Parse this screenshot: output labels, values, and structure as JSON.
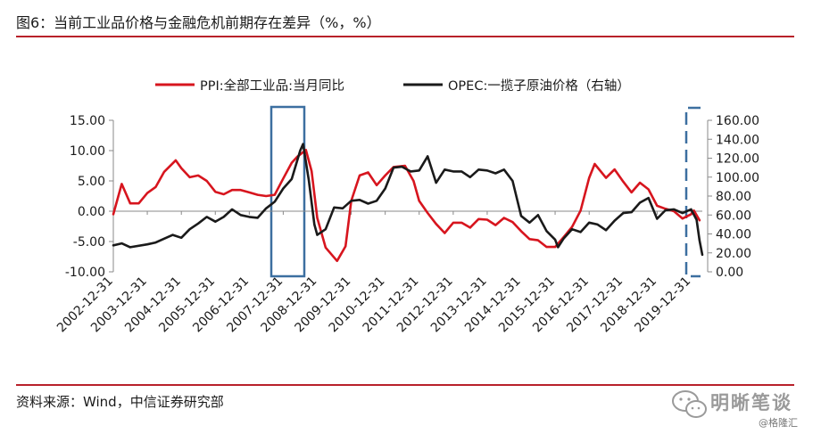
{
  "figure": {
    "title": "图6：当前工业品价格与金融危机前期存在差异（%，%）",
    "source": "资料来源：Wind，中信证券研究部",
    "watermark": "明晰笔谈",
    "watermark_sub": "@格隆汇"
  },
  "colors": {
    "ppi": "#d7151e",
    "opec": "#1a1a1a",
    "rule": "#b8212a",
    "highlight": "#3c6fa0"
  },
  "chart_data": {
    "type": "line",
    "title": "",
    "legend_position": "top",
    "grid": false,
    "x_tick_labels": [
      "2002-12-31",
      "2003-12-31",
      "2004-12-31",
      "2005-12-31",
      "2006-12-31",
      "2007-12-31",
      "2008-12-31",
      "2009-12-31",
      "2010-12-31",
      "2011-12-31",
      "2012-12-31",
      "2013-12-31",
      "2014-12-31",
      "2015-12-31",
      "2016-12-31",
      "2017-12-31",
      "2018-12-31",
      "2019-12-31"
    ],
    "x_range": [
      "2002-12-31",
      "2020-04-30"
    ],
    "y_left": {
      "range": [
        -10,
        15
      ],
      "ticks": [
        "-10.00",
        "-5.00",
        "0.00",
        "5.00",
        "10.00",
        "15.00"
      ]
    },
    "y_right": {
      "range": [
        0,
        160
      ],
      "ticks": [
        "0.00",
        "20.00",
        "40.00",
        "60.00",
        "80.00",
        "100.00",
        "120.00",
        "140.00",
        "160.00"
      ]
    },
    "series": [
      {
        "name": "PPI:全部工业品:当月同比",
        "axis": "left",
        "points": [
          [
            "2002-12-31",
            -0.5
          ],
          [
            "2003-03-31",
            4.5
          ],
          [
            "2003-06-30",
            1.3
          ],
          [
            "2003-09-30",
            1.3
          ],
          [
            "2003-12-31",
            3.0
          ],
          [
            "2004-03-31",
            4.0
          ],
          [
            "2004-06-30",
            6.5
          ],
          [
            "2004-10-31",
            8.4
          ],
          [
            "2004-12-31",
            7.1
          ],
          [
            "2005-03-31",
            5.6
          ],
          [
            "2005-06-30",
            5.9
          ],
          [
            "2005-09-30",
            5.0
          ],
          [
            "2005-12-31",
            3.2
          ],
          [
            "2006-03-31",
            2.8
          ],
          [
            "2006-06-30",
            3.5
          ],
          [
            "2006-09-30",
            3.5
          ],
          [
            "2006-12-31",
            3.1
          ],
          [
            "2007-03-31",
            2.7
          ],
          [
            "2007-06-30",
            2.5
          ],
          [
            "2007-09-30",
            2.7
          ],
          [
            "2007-12-31",
            5.4
          ],
          [
            "2008-03-31",
            8.0
          ],
          [
            "2008-05-31",
            9.0
          ],
          [
            "2008-08-31",
            10.1
          ],
          [
            "2008-10-31",
            6.6
          ],
          [
            "2008-12-31",
            -1.1
          ],
          [
            "2009-03-31",
            -6.0
          ],
          [
            "2009-07-31",
            -8.2
          ],
          [
            "2009-10-31",
            -5.8
          ],
          [
            "2009-12-31",
            1.7
          ],
          [
            "2010-03-31",
            5.9
          ],
          [
            "2010-06-30",
            6.4
          ],
          [
            "2010-09-30",
            4.3
          ],
          [
            "2010-12-31",
            5.9
          ],
          [
            "2011-03-31",
            7.3
          ],
          [
            "2011-07-31",
            7.5
          ],
          [
            "2011-10-31",
            5.0
          ],
          [
            "2011-12-31",
            1.7
          ],
          [
            "2012-03-31",
            -0.3
          ],
          [
            "2012-06-30",
            -2.1
          ],
          [
            "2012-09-30",
            -3.6
          ],
          [
            "2012-12-31",
            -1.9
          ],
          [
            "2013-03-31",
            -1.9
          ],
          [
            "2013-06-30",
            -2.7
          ],
          [
            "2013-09-30",
            -1.3
          ],
          [
            "2013-12-31",
            -1.4
          ],
          [
            "2014-03-31",
            -2.3
          ],
          [
            "2014-06-30",
            -1.1
          ],
          [
            "2014-09-30",
            -1.8
          ],
          [
            "2014-12-31",
            -3.3
          ],
          [
            "2015-03-31",
            -4.6
          ],
          [
            "2015-06-30",
            -4.8
          ],
          [
            "2015-09-30",
            -5.9
          ],
          [
            "2015-12-31",
            -5.9
          ],
          [
            "2016-03-31",
            -4.3
          ],
          [
            "2016-06-30",
            -2.6
          ],
          [
            "2016-09-30",
            0.1
          ],
          [
            "2016-12-31",
            5.5
          ],
          [
            "2017-02-28",
            7.8
          ],
          [
            "2017-06-30",
            5.5
          ],
          [
            "2017-09-30",
            6.9
          ],
          [
            "2017-12-31",
            4.9
          ],
          [
            "2018-03-31",
            3.1
          ],
          [
            "2018-06-30",
            4.7
          ],
          [
            "2018-09-30",
            3.6
          ],
          [
            "2018-12-31",
            0.9
          ],
          [
            "2019-03-31",
            0.4
          ],
          [
            "2019-06-30",
            0.0
          ],
          [
            "2019-09-30",
            -1.2
          ],
          [
            "2019-12-31",
            -0.5
          ],
          [
            "2020-01-31",
            0.1
          ],
          [
            "2020-03-31",
            -1.5
          ]
        ]
      },
      {
        "name": "OPEC:一揽子原油价格（右轴）",
        "axis": "right",
        "points": [
          [
            "2002-12-31",
            28
          ],
          [
            "2003-03-31",
            30
          ],
          [
            "2003-06-30",
            26
          ],
          [
            "2003-12-31",
            29
          ],
          [
            "2004-03-31",
            31
          ],
          [
            "2004-06-30",
            35
          ],
          [
            "2004-09-30",
            39
          ],
          [
            "2004-12-31",
            36
          ],
          [
            "2005-03-31",
            45
          ],
          [
            "2005-06-30",
            51
          ],
          [
            "2005-09-30",
            58
          ],
          [
            "2005-12-31",
            53
          ],
          [
            "2006-03-31",
            58
          ],
          [
            "2006-06-30",
            66
          ],
          [
            "2006-09-30",
            60
          ],
          [
            "2006-12-31",
            58
          ],
          [
            "2007-03-31",
            57
          ],
          [
            "2007-06-30",
            67
          ],
          [
            "2007-09-30",
            74
          ],
          [
            "2007-12-31",
            88
          ],
          [
            "2008-03-31",
            98
          ],
          [
            "2008-06-30",
            128
          ],
          [
            "2008-07-31",
            135
          ],
          [
            "2008-09-30",
            97
          ],
          [
            "2008-11-30",
            50
          ],
          [
            "2008-12-31",
            39
          ],
          [
            "2009-03-31",
            45
          ],
          [
            "2009-06-30",
            68
          ],
          [
            "2009-09-30",
            67
          ],
          [
            "2009-12-31",
            75
          ],
          [
            "2010-03-31",
            76
          ],
          [
            "2010-06-30",
            72
          ],
          [
            "2010-09-30",
            75
          ],
          [
            "2010-12-31",
            88
          ],
          [
            "2011-03-31",
            110
          ],
          [
            "2011-06-30",
            111
          ],
          [
            "2011-09-30",
            106
          ],
          [
            "2011-12-31",
            107
          ],
          [
            "2012-03-31",
            122
          ],
          [
            "2012-06-30",
            94
          ],
          [
            "2012-09-30",
            108
          ],
          [
            "2012-12-31",
            106
          ],
          [
            "2013-03-31",
            106
          ],
          [
            "2013-06-30",
            100
          ],
          [
            "2013-09-30",
            108
          ],
          [
            "2013-12-31",
            107
          ],
          [
            "2014-03-31",
            104
          ],
          [
            "2014-06-30",
            108
          ],
          [
            "2014-09-30",
            96
          ],
          [
            "2014-12-31",
            59
          ],
          [
            "2015-03-31",
            52
          ],
          [
            "2015-06-30",
            60
          ],
          [
            "2015-09-30",
            43
          ],
          [
            "2015-12-31",
            34
          ],
          [
            "2016-01-31",
            26
          ],
          [
            "2016-03-31",
            35
          ],
          [
            "2016-06-30",
            45
          ],
          [
            "2016-09-30",
            42
          ],
          [
            "2016-12-31",
            52
          ],
          [
            "2017-03-31",
            50
          ],
          [
            "2017-06-30",
            44
          ],
          [
            "2017-09-30",
            54
          ],
          [
            "2017-12-31",
            62
          ],
          [
            "2018-03-31",
            63
          ],
          [
            "2018-06-30",
            73
          ],
          [
            "2018-09-30",
            78
          ],
          [
            "2018-12-31",
            56
          ],
          [
            "2019-03-31",
            65
          ],
          [
            "2019-06-30",
            66
          ],
          [
            "2019-09-30",
            62
          ],
          [
            "2019-12-31",
            66
          ],
          [
            "2020-02-29",
            55
          ],
          [
            "2020-03-31",
            33
          ],
          [
            "2020-04-30",
            18
          ]
        ]
      }
    ]
  }
}
